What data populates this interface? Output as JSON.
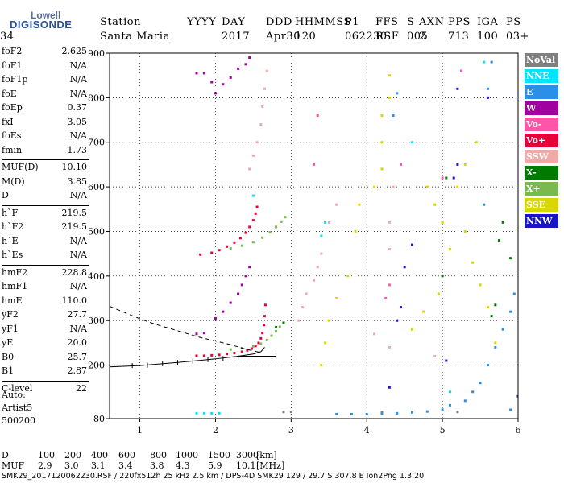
{
  "logo": {
    "line1": "Lowell",
    "line2": "DIGISONDE"
  },
  "header": {
    "labels": [
      "Station",
      "YYYY",
      "DAY",
      "DDD",
      "HHMMSS",
      "P1",
      "FFS",
      "S",
      "AXN",
      "PPS",
      "IGA",
      "PS"
    ],
    "values": [
      "Santa Maria",
      "2017",
      "Apr30",
      "120",
      "062230",
      "RSF",
      "005",
      "2",
      "713",
      "100",
      "03+",
      "34"
    ]
  },
  "params": [
    {
      "name": "foF2",
      "value": "2.625"
    },
    {
      "name": "foF1",
      "value": "N/A"
    },
    {
      "name": "foF1p",
      "value": "N/A"
    },
    {
      "name": "foE",
      "value": "N/A"
    },
    {
      "name": "foEp",
      "value": "0.37"
    },
    {
      "name": "fxI",
      "value": "3.05"
    },
    {
      "name": "foEs",
      "value": "N/A"
    },
    {
      "name": "fmin",
      "value": "1.73"
    },
    {
      "name": "MUF(D)",
      "value": "10.10"
    },
    {
      "name": "M(D)",
      "value": "3.85"
    },
    {
      "name": "D",
      "value": "N/A"
    },
    {
      "name": "h`F",
      "value": "219.5"
    },
    {
      "name": "h`F2",
      "value": "219.5"
    },
    {
      "name": "h`E",
      "value": "N/A"
    },
    {
      "name": "h`Es",
      "value": "N/A"
    },
    {
      "name": "hmF2",
      "value": "228.8"
    },
    {
      "name": "hmF1",
      "value": "N/A"
    },
    {
      "name": "hmE",
      "value": "110.0"
    },
    {
      "name": "yF2",
      "value": "27.7"
    },
    {
      "name": "yF1",
      "value": "N/A"
    },
    {
      "name": "yE",
      "value": "20.0"
    },
    {
      "name": "B0",
      "value": "25.7"
    },
    {
      "name": "B1",
      "value": "2.87"
    },
    {
      "name": "C-level",
      "value": "22"
    }
  ],
  "auto": {
    "line1": "Auto:",
    "line2": "Artist5",
    "line3": "500200"
  },
  "legend": [
    {
      "label": "NoVal",
      "color": "#808080"
    },
    {
      "label": "NNE",
      "color": "#00e5ff"
    },
    {
      "label": "E",
      "color": "#2a8fe8"
    },
    {
      "label": "W",
      "color": "#a000a0"
    },
    {
      "label": "Vo-",
      "color": "#ff55a8"
    },
    {
      "label": "Vo+",
      "color": "#e8003a"
    },
    {
      "label": "SSW",
      "color": "#f0a8a8"
    },
    {
      "label": "X-",
      "color": "#007a00"
    },
    {
      "label": "X+",
      "color": "#7ab850"
    },
    {
      "label": "SSE",
      "color": "#d8d800"
    },
    {
      "label": "NNW",
      "color": "#1a14c8"
    }
  ],
  "bottom": {
    "d_label": "D",
    "d_values": [
      "100",
      "200",
      "400",
      "600",
      "800",
      "1000",
      "1500",
      "3000"
    ],
    "d_unit": "[km]",
    "muf_label": "MUF",
    "muf_values": [
      "2.9",
      "3.0",
      "3.1",
      "3.4",
      "3.8",
      "4.3",
      "5.9",
      "10.1"
    ],
    "muf_unit": "[MHz]"
  },
  "footer": "SMK29_2017120062230.RSF / 220fx512h 25 kHz 2.5 km / DPS-4D SMK29 129 / 29.7 S 307.8 E Ion2Png 1.3.20",
  "chart_data": {
    "type": "scatter",
    "xlim": [
      0.6,
      6.0
    ],
    "ylim": [
      80,
      900
    ],
    "x_ticks": [
      1,
      2,
      3,
      4,
      5,
      6
    ],
    "x_tick_labels": [
      "1",
      "2",
      "3",
      "4",
      "5",
      "6"
    ],
    "y_ticks": [
      80,
      200,
      300,
      400,
      500,
      600,
      700,
      800,
      900
    ],
    "y_tick_labels": [
      "80",
      "200",
      "300",
      "400",
      "500",
      "600",
      "700",
      "800",
      "900"
    ],
    "grid": true,
    "series": [
      {
        "name": "Vo+",
        "color": "#e8003a",
        "points": [
          [
            1.75,
            221
          ],
          [
            1.85,
            221
          ],
          [
            1.95,
            222
          ],
          [
            2.05,
            223
          ],
          [
            2.15,
            225
          ],
          [
            2.25,
            227
          ],
          [
            2.35,
            230
          ],
          [
            2.42,
            233
          ],
          [
            2.48,
            237
          ],
          [
            2.53,
            243
          ],
          [
            2.57,
            250
          ],
          [
            2.6,
            260
          ],
          [
            2.62,
            272
          ],
          [
            2.64,
            290
          ],
          [
            2.65,
            310
          ],
          [
            2.66,
            335
          ],
          [
            1.8,
            448
          ],
          [
            1.95,
            452
          ],
          [
            2.05,
            458
          ],
          [
            2.15,
            466
          ],
          [
            2.25,
            475
          ],
          [
            2.33,
            485
          ],
          [
            2.4,
            497
          ],
          [
            2.45,
            510
          ],
          [
            2.5,
            525
          ],
          [
            2.53,
            540
          ],
          [
            2.55,
            555
          ]
        ]
      },
      {
        "name": "X+",
        "color": "#7ab850",
        "points": [
          [
            2.2,
            235
          ],
          [
            2.35,
            238
          ],
          [
            2.5,
            242
          ],
          [
            2.6,
            248
          ],
          [
            2.68,
            256
          ],
          [
            2.74,
            266
          ],
          [
            2.8,
            276
          ],
          [
            2.85,
            286
          ],
          [
            2.2,
            462
          ],
          [
            2.35,
            468
          ],
          [
            2.5,
            476
          ],
          [
            2.62,
            486
          ],
          [
            2.72,
            498
          ],
          [
            2.8,
            510
          ],
          [
            2.87,
            522
          ],
          [
            2.92,
            532
          ]
        ]
      },
      {
        "name": "W",
        "color": "#a000a0",
        "points": [
          [
            1.75,
            855
          ],
          [
            1.85,
            855
          ],
          [
            1.95,
            835
          ],
          [
            2.0,
            810
          ],
          [
            2.1,
            830
          ],
          [
            2.2,
            845
          ],
          [
            2.3,
            865
          ],
          [
            2.4,
            875
          ],
          [
            2.45,
            890
          ],
          [
            1.75,
            270
          ],
          [
            1.85,
            272
          ],
          [
            2.0,
            305
          ],
          [
            2.1,
            320
          ],
          [
            2.2,
            340
          ],
          [
            2.3,
            360
          ],
          [
            2.35,
            380
          ],
          [
            2.4,
            400
          ],
          [
            2.45,
            420
          ]
        ]
      },
      {
        "name": "SSW",
        "color": "#f0a8a8",
        "points": [
          [
            2.45,
            640
          ],
          [
            2.5,
            670
          ],
          [
            2.55,
            700
          ],
          [
            2.6,
            740
          ],
          [
            2.62,
            780
          ],
          [
            2.65,
            820
          ],
          [
            2.68,
            860
          ],
          [
            3.1,
            300
          ],
          [
            3.15,
            330
          ],
          [
            3.2,
            360
          ],
          [
            3.3,
            390
          ],
          [
            3.35,
            420
          ],
          [
            3.4,
            450
          ],
          [
            3.5,
            520
          ],
          [
            3.6,
            560
          ],
          [
            4.1,
            270
          ],
          [
            4.3,
            240
          ],
          [
            4.3,
            460
          ],
          [
            4.3,
            520
          ],
          [
            4.35,
            600
          ],
          [
            4.9,
            220
          ]
        ]
      },
      {
        "name": "SSE",
        "color": "#d8d800",
        "points": [
          [
            3.4,
            200
          ],
          [
            3.45,
            250
          ],
          [
            3.5,
            300
          ],
          [
            3.6,
            350
          ],
          [
            3.75,
            400
          ],
          [
            3.85,
            500
          ],
          [
            3.9,
            560
          ],
          [
            4.1,
            600
          ],
          [
            4.2,
            640
          ],
          [
            4.2,
            700
          ],
          [
            4.2,
            760
          ],
          [
            4.3,
            800
          ],
          [
            4.3,
            850
          ],
          [
            4.8,
            600
          ],
          [
            4.9,
            560
          ],
          [
            5.0,
            520
          ],
          [
            5.1,
            460
          ],
          [
            5.3,
            500
          ],
          [
            5.4,
            430
          ],
          [
            5.5,
            380
          ],
          [
            5.6,
            330
          ],
          [
            5.7,
            250
          ],
          [
            4.6,
            280
          ],
          [
            4.75,
            320
          ],
          [
            4.95,
            360
          ],
          [
            5.2,
            600
          ],
          [
            5.3,
            650
          ],
          [
            5.45,
            700
          ]
        ]
      },
      {
        "name": "E",
        "color": "#2a8fe8",
        "points": [
          [
            3.6,
            90
          ],
          [
            3.8,
            90
          ],
          [
            4.0,
            90
          ],
          [
            4.2,
            90
          ],
          [
            4.4,
            92
          ],
          [
            4.6,
            94
          ],
          [
            4.8,
            96
          ],
          [
            5.0,
            100
          ],
          [
            5.1,
            110
          ],
          [
            5.3,
            120
          ],
          [
            5.4,
            140
          ],
          [
            5.5,
            160
          ],
          [
            5.6,
            200
          ],
          [
            5.7,
            240
          ],
          [
            5.8,
            280
          ],
          [
            5.9,
            320
          ],
          [
            5.95,
            360
          ],
          [
            5.55,
            560
          ],
          [
            5.6,
            820
          ],
          [
            5.65,
            880
          ],
          [
            5.9,
            100
          ],
          [
            4.35,
            760
          ],
          [
            4.4,
            810
          ]
        ]
      },
      {
        "name": "NNE",
        "color": "#00e5ff",
        "points": [
          [
            1.75,
            92
          ],
          [
            1.85,
            92
          ],
          [
            1.95,
            92
          ],
          [
            2.05,
            92
          ],
          [
            2.5,
            580
          ],
          [
            3.4,
            490
          ],
          [
            3.45,
            520
          ],
          [
            4.6,
            700
          ],
          [
            5.1,
            140
          ],
          [
            5.55,
            880
          ]
        ]
      },
      {
        "name": "X-",
        "color": "#007a00",
        "points": [
          [
            2.8,
            285
          ],
          [
            2.9,
            295
          ],
          [
            5.65,
            310
          ],
          [
            5.7,
            335
          ],
          [
            5.75,
            480
          ],
          [
            5.8,
            520
          ],
          [
            5.9,
            440
          ],
          [
            5.0,
            400
          ],
          [
            5.05,
            620
          ]
        ]
      },
      {
        "name": "NNW",
        "color": "#1a14c8",
        "points": [
          [
            4.3,
            150
          ],
          [
            4.4,
            300
          ],
          [
            4.45,
            330
          ],
          [
            4.5,
            420
          ],
          [
            4.6,
            470
          ],
          [
            5.05,
            210
          ],
          [
            5.15,
            620
          ],
          [
            5.2,
            650
          ],
          [
            5.2,
            820
          ],
          [
            5.25,
            860
          ],
          [
            5.6,
            800
          ],
          [
            6.0,
            130
          ]
        ]
      },
      {
        "name": "Vo-",
        "color": "#ff55a8",
        "points": [
          [
            3.3,
            650
          ],
          [
            3.35,
            760
          ],
          [
            4.25,
            350
          ],
          [
            4.3,
            380
          ],
          [
            4.45,
            650
          ],
          [
            5.0,
            620
          ],
          [
            5.25,
            860
          ]
        ]
      },
      {
        "name": "NoVal",
        "color": "#808080",
        "points": [
          [
            2.9,
            95
          ],
          [
            3.0,
            95
          ],
          [
            4.2,
            95
          ],
          [
            5.2,
            95
          ]
        ]
      }
    ],
    "profile_curve": {
      "color": "#000000",
      "points": [
        [
          0.6,
          196
        ],
        [
          1.0,
          199
        ],
        [
          1.5,
          206
        ],
        [
          2.0,
          214
        ],
        [
          2.3,
          220
        ],
        [
          2.5,
          225
        ],
        [
          2.6,
          230
        ],
        [
          2.65,
          240
        ]
      ]
    },
    "error_bars": {
      "color": "#000000",
      "points": [
        [
          0.9,
          199
        ],
        [
          1.1,
          200
        ],
        [
          1.3,
          203
        ],
        [
          1.5,
          206
        ],
        [
          1.7,
          209
        ],
        [
          1.9,
          212
        ],
        [
          2.1,
          215
        ],
        [
          2.3,
          218
        ]
      ],
      "bar_end": [
        2.8,
        220
      ]
    },
    "model_curve": {
      "color": "#000000",
      "points": [
        [
          0.6,
          332
        ],
        [
          0.8,
          318
        ],
        [
          1.0,
          304
        ],
        [
          1.2,
          292
        ],
        [
          1.4,
          282
        ],
        [
          1.6,
          272
        ],
        [
          1.8,
          262
        ],
        [
          2.0,
          254
        ],
        [
          2.2,
          246
        ],
        [
          2.35,
          238
        ],
        [
          2.5,
          232
        ],
        [
          2.6,
          228
        ]
      ]
    }
  }
}
